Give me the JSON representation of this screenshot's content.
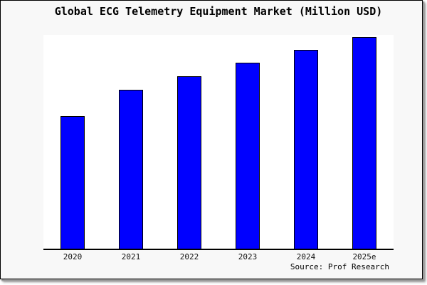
{
  "title": "Global ECG Telemetry Equipment Market (Million USD)",
  "source": "Source: Prof Research",
  "colors": {
    "bar_fill": "#0000ff",
    "bar_border": "#000000",
    "canvas_background": "#f8f8f8",
    "plot_background": "#ffffff",
    "axis": "#000000",
    "text": "#000000"
  },
  "chart_data": {
    "type": "bar",
    "title": "Global ECG Telemetry Equipment Market (Million USD)",
    "categories": [
      "2020",
      "2021",
      "2022",
      "2023",
      "2024",
      "2025e"
    ],
    "values": [
      62,
      74.3,
      80.7,
      87,
      93,
      99
    ],
    "xlabel": "",
    "ylabel": "",
    "ylim": [
      0,
      100
    ],
    "y_axis_labels_visible": false,
    "grid": false,
    "legend": null,
    "annotation": "Source: Prof Research",
    "note": "No y-axis scale is shown in the image; values are bar heights estimated as percent of the plot height."
  }
}
